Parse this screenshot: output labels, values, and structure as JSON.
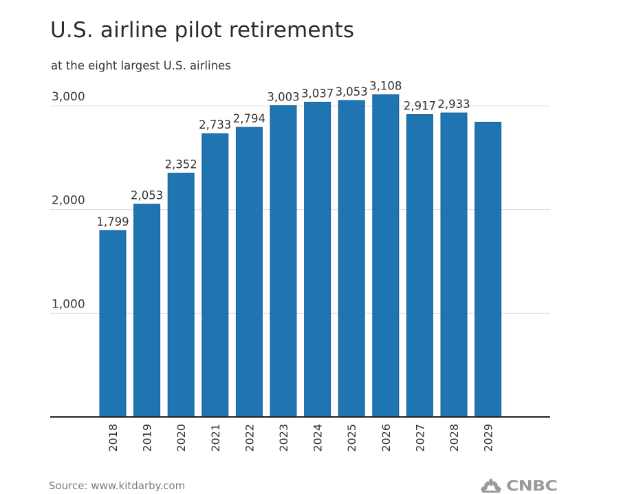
{
  "chart_data": {
    "type": "bar",
    "title": "U.S. airline pilot retirements",
    "subtitle": "at the eight largest U.S. airlines",
    "xlabel": "",
    "ylabel": "",
    "ylim": [
      0,
      3000
    ],
    "yticks": [
      1000,
      2000,
      3000
    ],
    "ytick_labels": [
      "1,000",
      "2,000",
      "3,000"
    ],
    "grid": true,
    "legend": "none",
    "bar_color": "#1f74b2",
    "bar_edge_color": "#1a5f93",
    "categories": [
      "2018",
      "2019",
      "2020",
      "2021",
      "2022",
      "2023",
      "2024",
      "2025",
      "2026",
      "2027",
      "2028",
      "2029"
    ],
    "values": [
      1799,
      2053,
      2352,
      2733,
      2794,
      3003,
      3037,
      3053,
      3108,
      2917,
      2933,
      2844
    ],
    "data_labels": [
      "1,799",
      "2,053",
      "2,352",
      "2,733",
      "2,794",
      "3,003",
      "3,037",
      "3,053",
      "3,108",
      "2,917",
      "2,933",
      null
    ]
  },
  "footer": {
    "source": "Source: www.kitdarby.com",
    "logo": "CNBC"
  }
}
